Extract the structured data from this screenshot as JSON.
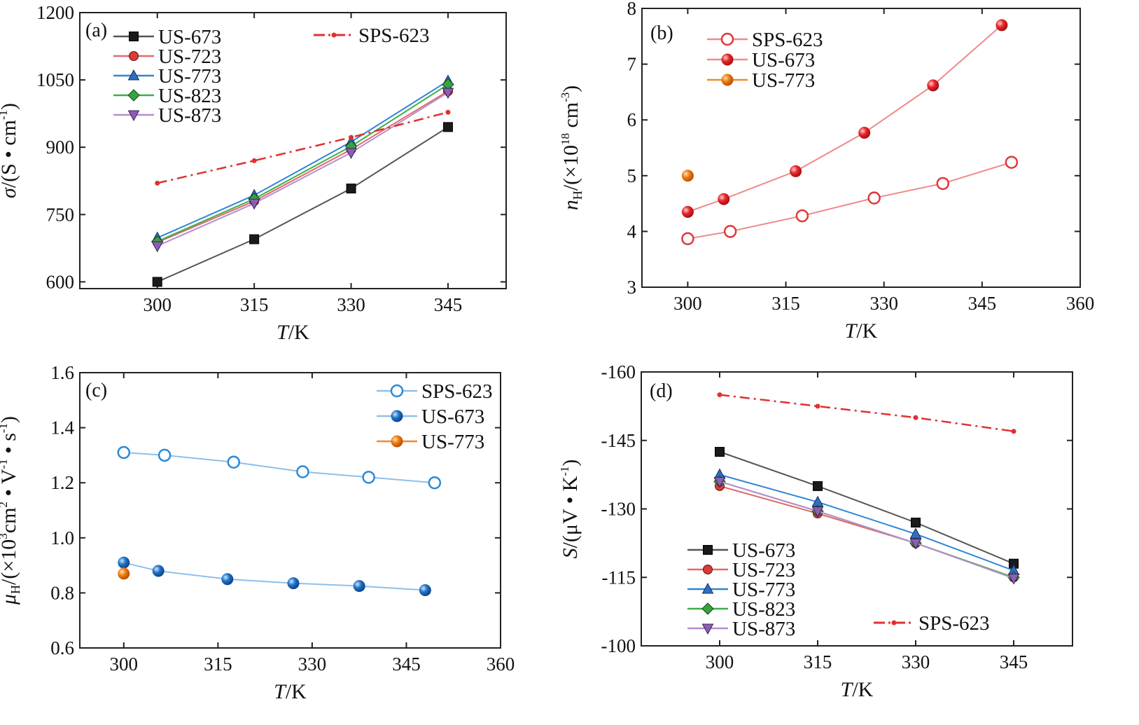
{
  "chart_data": [
    {
      "panel": "(a)",
      "type": "line",
      "x_axis": {
        "label_italic": "T",
        "label_rest": "/K",
        "ticks": [
          "300",
          "315",
          "330",
          "345"
        ],
        "range": [
          288,
          354
        ]
      },
      "y_axis": {
        "label_italic": "σ",
        "label_rest": "/(S • cm",
        "label_sup": "-1",
        "label_close": ")",
        "ticks": [
          "600",
          "750",
          "900",
          "1050",
          "1200"
        ],
        "range": [
          585,
          1200
        ]
      },
      "legend_position": "top-left",
      "series": [
        {
          "name": "US-673",
          "color": "#555555",
          "marker": "square",
          "x": [
            300,
            315,
            330,
            345
          ],
          "y": [
            600,
            695,
            808,
            945
          ]
        },
        {
          "name": "US-723",
          "color": "#e06a6a",
          "marker": "circle",
          "x": [
            300,
            315,
            330,
            345
          ],
          "y": [
            688,
            780,
            895,
            1025
          ]
        },
        {
          "name": "US-773",
          "color": "#2e86d6",
          "marker": "triangle-up",
          "x": [
            300,
            315,
            330,
            345
          ],
          "y": [
            698,
            793,
            912,
            1048
          ]
        },
        {
          "name": "US-823",
          "color": "#3fae49",
          "marker": "diamond",
          "x": [
            300,
            315,
            330,
            345
          ],
          "y": [
            690,
            785,
            902,
            1040
          ]
        },
        {
          "name": "US-873",
          "color": "#b58ed0",
          "marker": "triangle-down",
          "x": [
            300,
            315,
            330,
            345
          ],
          "y": [
            680,
            775,
            888,
            1022
          ]
        },
        {
          "name": "SPS-623",
          "color": "#e03030",
          "marker": "small-dot",
          "dash": "dashdot",
          "x": [
            300,
            315,
            330,
            345
          ],
          "y": [
            820,
            870,
            922,
            978
          ]
        }
      ]
    },
    {
      "panel": "(b)",
      "type": "line",
      "x_axis": {
        "label_italic": "T",
        "label_rest": "/K",
        "ticks": [
          "300",
          "315",
          "330",
          "345",
          "360"
        ],
        "range": [
          293,
          360
        ]
      },
      "y_axis": {
        "label_italic": "n",
        "label_sub": "H",
        "label_rest": "/(×10",
        "label_sup": "18",
        "label_unit": " cm",
        "label_sup2": "-3",
        "label_close": ")",
        "ticks": [
          "3",
          "4",
          "5",
          "6",
          "7",
          "8"
        ],
        "range": [
          3,
          8
        ]
      },
      "legend_position": "top-left",
      "series": [
        {
          "name": "SPS-623",
          "color": "#f08a8a",
          "marker": "open-circle",
          "x": [
            300,
            306.5,
            317.5,
            328.5,
            339,
            349.5
          ],
          "y": [
            3.87,
            4.0,
            4.28,
            4.6,
            4.86,
            5.24
          ]
        },
        {
          "name": "US-673",
          "color": "#f08a8a",
          "marker": "red-ball",
          "x": [
            300,
            305.5,
            316.5,
            327,
            337.5,
            348
          ],
          "y": [
            4.35,
            4.58,
            5.08,
            5.77,
            6.62,
            7.7
          ]
        },
        {
          "name": "US-773",
          "color": "#f08a30",
          "marker": "orange-ball",
          "x": [
            300
          ],
          "y": [
            5.0
          ]
        }
      ]
    },
    {
      "panel": "(c)",
      "type": "line",
      "x_axis": {
        "label_italic": "T",
        "label_rest": "/K",
        "ticks": [
          "300",
          "315",
          "330",
          "345",
          "360"
        ],
        "range": [
          293,
          360
        ]
      },
      "y_axis": {
        "label_italic": "μ",
        "label_sub": "H",
        "label_rest": "/(×10",
        "label_sup": "3",
        "label_unit": "cm",
        "label_sup2": "2",
        "label_mid": " • V",
        "label_sup3": "-1",
        "label_end": " • s",
        "label_sup4": "-1",
        "label_close": ")",
        "ticks": [
          "0.6",
          "0.8",
          "1.0",
          "1.2",
          "1.4",
          "1.6"
        ],
        "range": [
          0.6,
          1.6
        ]
      },
      "legend_position": "top-right",
      "series": [
        {
          "name": "SPS-623",
          "color": "#8fc0ea",
          "marker": "open-circle-blue",
          "x": [
            300,
            306.5,
            317.5,
            328.5,
            339,
            349.5
          ],
          "y": [
            1.31,
            1.3,
            1.275,
            1.24,
            1.22,
            1.2
          ]
        },
        {
          "name": "US-673",
          "color": "#8fc0ea",
          "marker": "blue-ball",
          "x": [
            300,
            305.5,
            316.5,
            327,
            337.5,
            348
          ],
          "y": [
            0.91,
            0.88,
            0.85,
            0.835,
            0.825,
            0.81
          ]
        },
        {
          "name": "US-773",
          "color": "#f08a30",
          "marker": "orange-ball",
          "x": [
            300
          ],
          "y": [
            0.87
          ]
        }
      ]
    },
    {
      "panel": "(d)",
      "type": "line",
      "x_axis": {
        "label_italic": "T",
        "label_rest": "/K",
        "ticks": [
          "300",
          "315",
          "330",
          "345"
        ],
        "range": [
          288,
          354
        ]
      },
      "y_axis": {
        "label_italic": "S",
        "label_rest": "/(μV • K",
        "label_sup": "-1",
        "label_close": ")",
        "ticks": [
          "-100",
          "-115",
          "-130",
          "-145",
          "-160"
        ],
        "range": [
          -100,
          -160
        ]
      },
      "legend_position": "bottom-left",
      "series": [
        {
          "name": "US-673",
          "color": "#555555",
          "marker": "square",
          "x": [
            300,
            315,
            330,
            345
          ],
          "y": [
            -142.5,
            -135,
            -127,
            -118
          ]
        },
        {
          "name": "US-723",
          "color": "#e06a6a",
          "marker": "circle",
          "x": [
            300,
            315,
            330,
            345
          ],
          "y": [
            -135,
            -129,
            -122.5,
            -115
          ]
        },
        {
          "name": "US-773",
          "color": "#2e86d6",
          "marker": "triangle-up",
          "x": [
            300,
            315,
            330,
            345
          ],
          "y": [
            -137.5,
            -131.5,
            -124.5,
            -116.5
          ]
        },
        {
          "name": "US-823",
          "color": "#3fae49",
          "marker": "diamond",
          "x": [
            300,
            315,
            330,
            345
          ],
          "y": [
            -136,
            -129.5,
            -122.5,
            -115
          ]
        },
        {
          "name": "US-873",
          "color": "#b58ed0",
          "marker": "triangle-down",
          "x": [
            300,
            315,
            330,
            345
          ],
          "y": [
            -136,
            -129.5,
            -122.5,
            -114.8
          ]
        },
        {
          "name": "SPS-623",
          "color": "#e03030",
          "marker": "small-dot",
          "dash": "dashdot",
          "x": [
            300,
            315,
            330,
            345
          ],
          "y": [
            -155,
            -152.5,
            -150,
            -147
          ]
        }
      ]
    }
  ]
}
